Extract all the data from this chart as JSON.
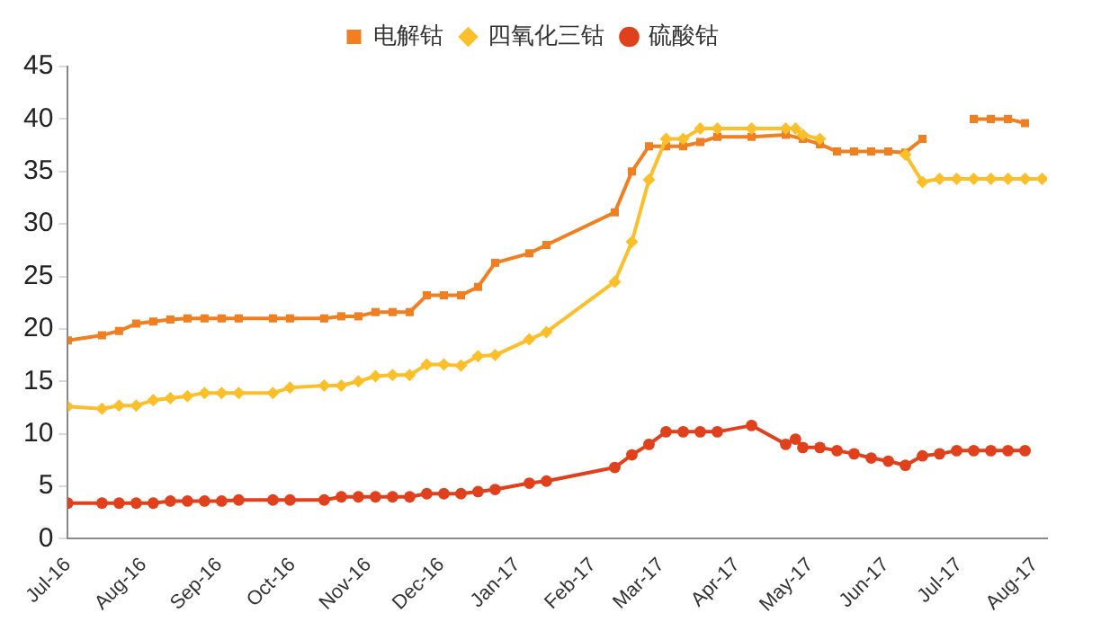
{
  "chart_data": {
    "type": "line",
    "legend": "top",
    "grid": false,
    "line_style": "solid",
    "xlim": [
      "2016-07-01",
      "2017-08-06"
    ],
    "xticks": [
      {
        "value": "2016-07",
        "label": "Jul-16"
      },
      {
        "value": "2016-08",
        "label": "Aug-16"
      },
      {
        "value": "2016-09",
        "label": "Sep-16"
      },
      {
        "value": "2016-10",
        "label": "Oct-16"
      },
      {
        "value": "2016-11",
        "label": "Nov-16"
      },
      {
        "value": "2016-12",
        "label": "Dec-16"
      },
      {
        "value": "2017-01",
        "label": "Jan-17"
      },
      {
        "value": "2017-02",
        "label": "Feb-17"
      },
      {
        "value": "2017-03",
        "label": "Mar-17"
      },
      {
        "value": "2017-04",
        "label": "Apr-17"
      },
      {
        "value": "2017-05",
        "label": "May-17"
      },
      {
        "value": "2017-06",
        "label": "Jun-17"
      },
      {
        "value": "2017-07",
        "label": "Jul-17"
      },
      {
        "value": "2017-08",
        "label": "Aug-17"
      }
    ],
    "ylim": [
      0,
      45
    ],
    "yticks": [
      0,
      5,
      10,
      15,
      20,
      25,
      30,
      35,
      40,
      45
    ],
    "series": [
      {
        "name": "电解钴",
        "color": "#f07f22",
        "marker": "square",
        "x": [
          "2016-07-01",
          "2016-07-15",
          "2016-07-22",
          "2016-07-29",
          "2016-08-05",
          "2016-08-12",
          "2016-08-19",
          "2016-08-26",
          "2016-09-02",
          "2016-09-09",
          "2016-09-23",
          "2016-09-30",
          "2016-10-14",
          "2016-10-21",
          "2016-10-28",
          "2016-11-04",
          "2016-11-11",
          "2016-11-18",
          "2016-11-25",
          "2016-12-02",
          "2016-12-09",
          "2016-12-16",
          "2016-12-23",
          "2017-01-06",
          "2017-01-13",
          "2017-02-10",
          "2017-02-17",
          "2017-02-24",
          "2017-03-03",
          "2017-03-10",
          "2017-03-17",
          "2017-03-24",
          "2017-04-07",
          "2017-04-21",
          "2017-04-28",
          "2017-05-05",
          "2017-05-12",
          "2017-05-19",
          "2017-05-26",
          "2017-06-02",
          "2017-06-09",
          "2017-06-16",
          "2017-06-30",
          "2017-07-07",
          "2017-07-14",
          "2017-07-21",
          "2017-07-28"
        ],
        "values": [
          18.9,
          19.4,
          19.8,
          20.5,
          20.7,
          20.9,
          21.0,
          21.0,
          21.0,
          21.0,
          21.0,
          21.0,
          21.0,
          21.2,
          21.2,
          21.6,
          21.6,
          21.6,
          23.2,
          23.2,
          23.2,
          24.0,
          26.3,
          27.2,
          28.0,
          31.1,
          35.0,
          37.4,
          37.4,
          37.4,
          37.8,
          38.3,
          38.3,
          38.5,
          38.1,
          37.6,
          36.9,
          36.9,
          36.9,
          36.9,
          36.8,
          38.1,
          null,
          40.0,
          40.0,
          40.0,
          39.6
        ]
      },
      {
        "name": "四氧化三钴",
        "color": "#fbbf2a",
        "marker": "diamond",
        "x": [
          "2016-07-01",
          "2016-07-15",
          "2016-07-22",
          "2016-07-29",
          "2016-08-05",
          "2016-08-12",
          "2016-08-19",
          "2016-08-26",
          "2016-09-02",
          "2016-09-09",
          "2016-09-23",
          "2016-09-30",
          "2016-10-14",
          "2016-10-21",
          "2016-10-28",
          "2016-11-04",
          "2016-11-11",
          "2016-11-18",
          "2016-11-25",
          "2016-12-02",
          "2016-12-09",
          "2016-12-16",
          "2016-12-23",
          "2017-01-06",
          "2017-01-13",
          "2017-02-10",
          "2017-02-17",
          "2017-02-24",
          "2017-03-03",
          "2017-03-10",
          "2017-03-17",
          "2017-03-24",
          "2017-04-07",
          "2017-04-21",
          "2017-04-25",
          "2017-04-28",
          "2017-05-05",
          "2017-05-12",
          "2017-05-19",
          "2017-05-26",
          "2017-06-02",
          "2017-06-09",
          "2017-06-16",
          "2017-06-23",
          "2017-06-30",
          "2017-07-07",
          "2017-07-14",
          "2017-07-21",
          "2017-07-28",
          "2017-08-04"
        ],
        "values": [
          12.6,
          12.4,
          12.7,
          12.7,
          13.2,
          13.4,
          13.6,
          13.9,
          13.9,
          13.9,
          13.9,
          14.4,
          14.6,
          14.6,
          15.0,
          15.5,
          15.6,
          15.6,
          16.6,
          16.6,
          16.5,
          17.4,
          17.5,
          19.0,
          19.7,
          24.5,
          28.3,
          34.2,
          38.1,
          38.1,
          39.1,
          39.1,
          39.1,
          39.1,
          39.1,
          38.5,
          38.1,
          null,
          null,
          null,
          null,
          36.6,
          34.0,
          34.3,
          34.3,
          34.3,
          34.3,
          34.3,
          34.3,
          34.3
        ]
      },
      {
        "name": "硫酸钴",
        "color": "#e0401c",
        "marker": "circle",
        "x": [
          "2016-07-01",
          "2016-07-15",
          "2016-07-22",
          "2016-07-29",
          "2016-08-05",
          "2016-08-12",
          "2016-08-19",
          "2016-08-26",
          "2016-09-02",
          "2016-09-09",
          "2016-09-23",
          "2016-09-30",
          "2016-10-14",
          "2016-10-21",
          "2016-10-28",
          "2016-11-04",
          "2016-11-11",
          "2016-11-18",
          "2016-11-25",
          "2016-12-02",
          "2016-12-09",
          "2016-12-16",
          "2016-12-23",
          "2017-01-06",
          "2017-01-13",
          "2017-02-10",
          "2017-02-17",
          "2017-02-24",
          "2017-03-03",
          "2017-03-10",
          "2017-03-17",
          "2017-03-24",
          "2017-04-07",
          "2017-04-21",
          "2017-04-25",
          "2017-04-28",
          "2017-05-05",
          "2017-05-12",
          "2017-05-19",
          "2017-05-26",
          "2017-06-02",
          "2017-06-09",
          "2017-06-16",
          "2017-06-23",
          "2017-06-30",
          "2017-07-07",
          "2017-07-14",
          "2017-07-21",
          "2017-07-28"
        ],
        "values": [
          3.4,
          3.4,
          3.4,
          3.4,
          3.4,
          3.6,
          3.6,
          3.6,
          3.6,
          3.7,
          3.7,
          3.7,
          3.7,
          4.0,
          4.0,
          4.0,
          4.0,
          4.0,
          4.3,
          4.3,
          4.3,
          4.5,
          4.7,
          5.3,
          5.5,
          6.8,
          8.0,
          9.0,
          10.2,
          10.2,
          10.2,
          10.2,
          10.8,
          9.0,
          9.5,
          8.7,
          8.7,
          8.4,
          8.1,
          7.7,
          7.4,
          7.0,
          7.9,
          8.1,
          8.4,
          8.4,
          8.4,
          8.4,
          8.4
        ]
      }
    ]
  }
}
